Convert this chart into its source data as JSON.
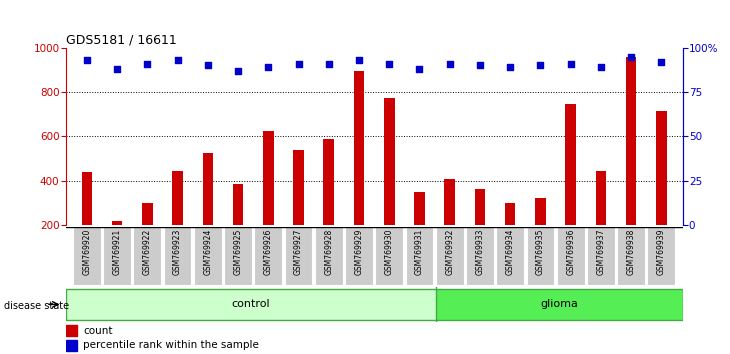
{
  "title": "GDS5181 / 16611",
  "samples": [
    "GSM769920",
    "GSM769921",
    "GSM769922",
    "GSM769923",
    "GSM769924",
    "GSM769925",
    "GSM769926",
    "GSM769927",
    "GSM769928",
    "GSM769929",
    "GSM769930",
    "GSM769931",
    "GSM769932",
    "GSM769933",
    "GSM769934",
    "GSM769935",
    "GSM769936",
    "GSM769937",
    "GSM769938",
    "GSM769939"
  ],
  "counts": [
    440,
    215,
    300,
    445,
    525,
    385,
    625,
    540,
    590,
    895,
    775,
    350,
    405,
    360,
    300,
    320,
    745,
    445,
    960,
    715
  ],
  "percentiles": [
    93,
    88,
    91,
    93,
    90,
    87,
    89,
    91,
    91,
    93,
    91,
    88,
    91,
    90,
    89,
    90,
    91,
    89,
    95,
    92
  ],
  "bar_color": "#cc0000",
  "dot_color": "#0000cc",
  "control_count": 12,
  "glioma_count": 8,
  "control_label": "control",
  "glioma_label": "glioma",
  "disease_state_label": "disease state",
  "legend_count": "count",
  "legend_percentile": "percentile rank within the sample",
  "ylim_left": [
    200,
    1000
  ],
  "ylim_right": [
    0,
    100
  ],
  "yticks_left": [
    200,
    400,
    600,
    800,
    1000
  ],
  "yticks_right": [
    0,
    25,
    50,
    75,
    100
  ],
  "ytick_labels_right": [
    "0",
    "25",
    "50",
    "75",
    "100%"
  ],
  "grid_values": [
    400,
    600,
    800
  ],
  "left_axis_color": "#cc0000",
  "right_axis_color": "#0000cc",
  "control_bg": "#ccffcc",
  "glioma_bg": "#55ee55",
  "tick_bg": "#cccccc"
}
